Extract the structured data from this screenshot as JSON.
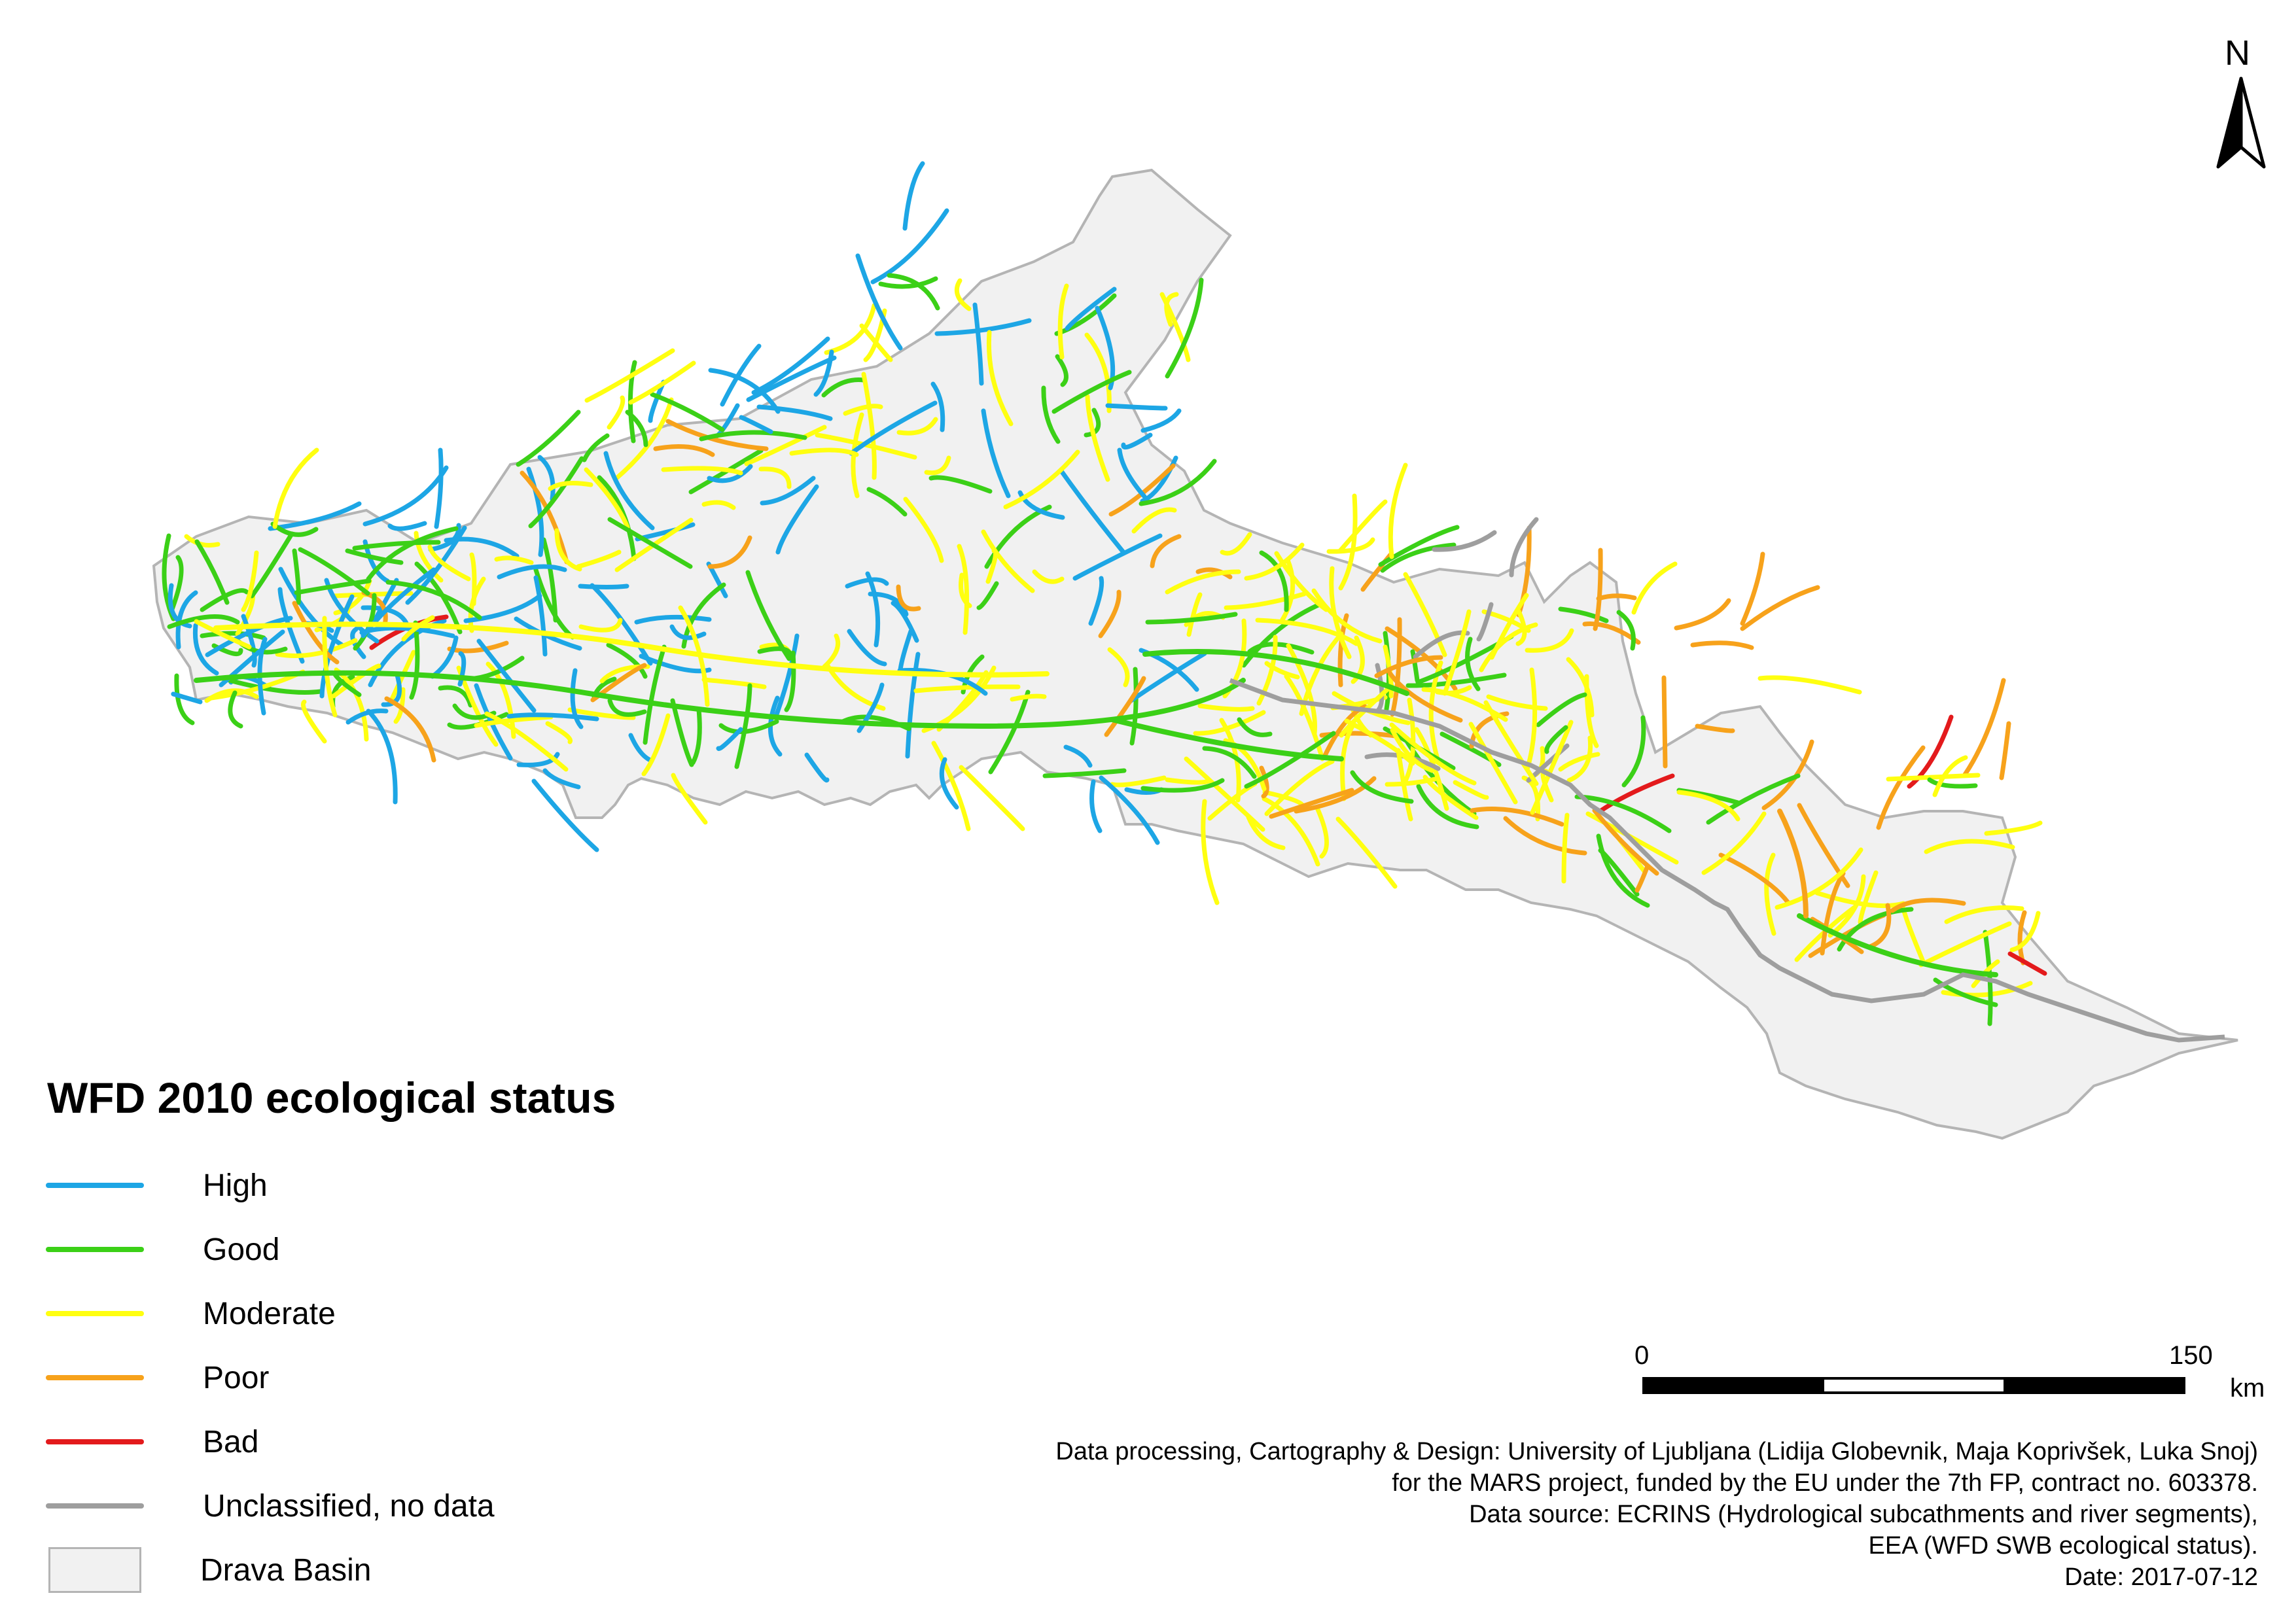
{
  "legend": {
    "title": "WFD 2010 ecological status",
    "items": [
      {
        "label": "High",
        "color": "#1da6e5"
      },
      {
        "label": "Good",
        "color": "#3bd017"
      },
      {
        "label": "Moderate",
        "color": "#ffff10"
      },
      {
        "label": "Poor",
        "color": "#f7a21b"
      },
      {
        "label": "Bad",
        "color": "#e31a1c"
      },
      {
        "label": "Unclassified, no data",
        "color": "#9e9e9e"
      }
    ],
    "basin": {
      "label": "Drava Basin",
      "fill": "#f1f1f1",
      "stroke": "#b4b4b4"
    }
  },
  "north_arrow": {
    "label": "N"
  },
  "scale": {
    "start": "0",
    "end": "150",
    "unit": "km"
  },
  "credits": [
    "Data processing, Cartography & Design: University of Ljubljana (Lidija Globevnik, Maja Koprivšek, Luka Snoj)",
    "for the MARS project, funded by the EU under the 7th FP, contract no. 603378.",
    "Data source: ECRINS (Hydrological subcathments and river segments),",
    "EEA (WFD SWB ecological status).",
    "Date: 2017-07-12"
  ]
}
